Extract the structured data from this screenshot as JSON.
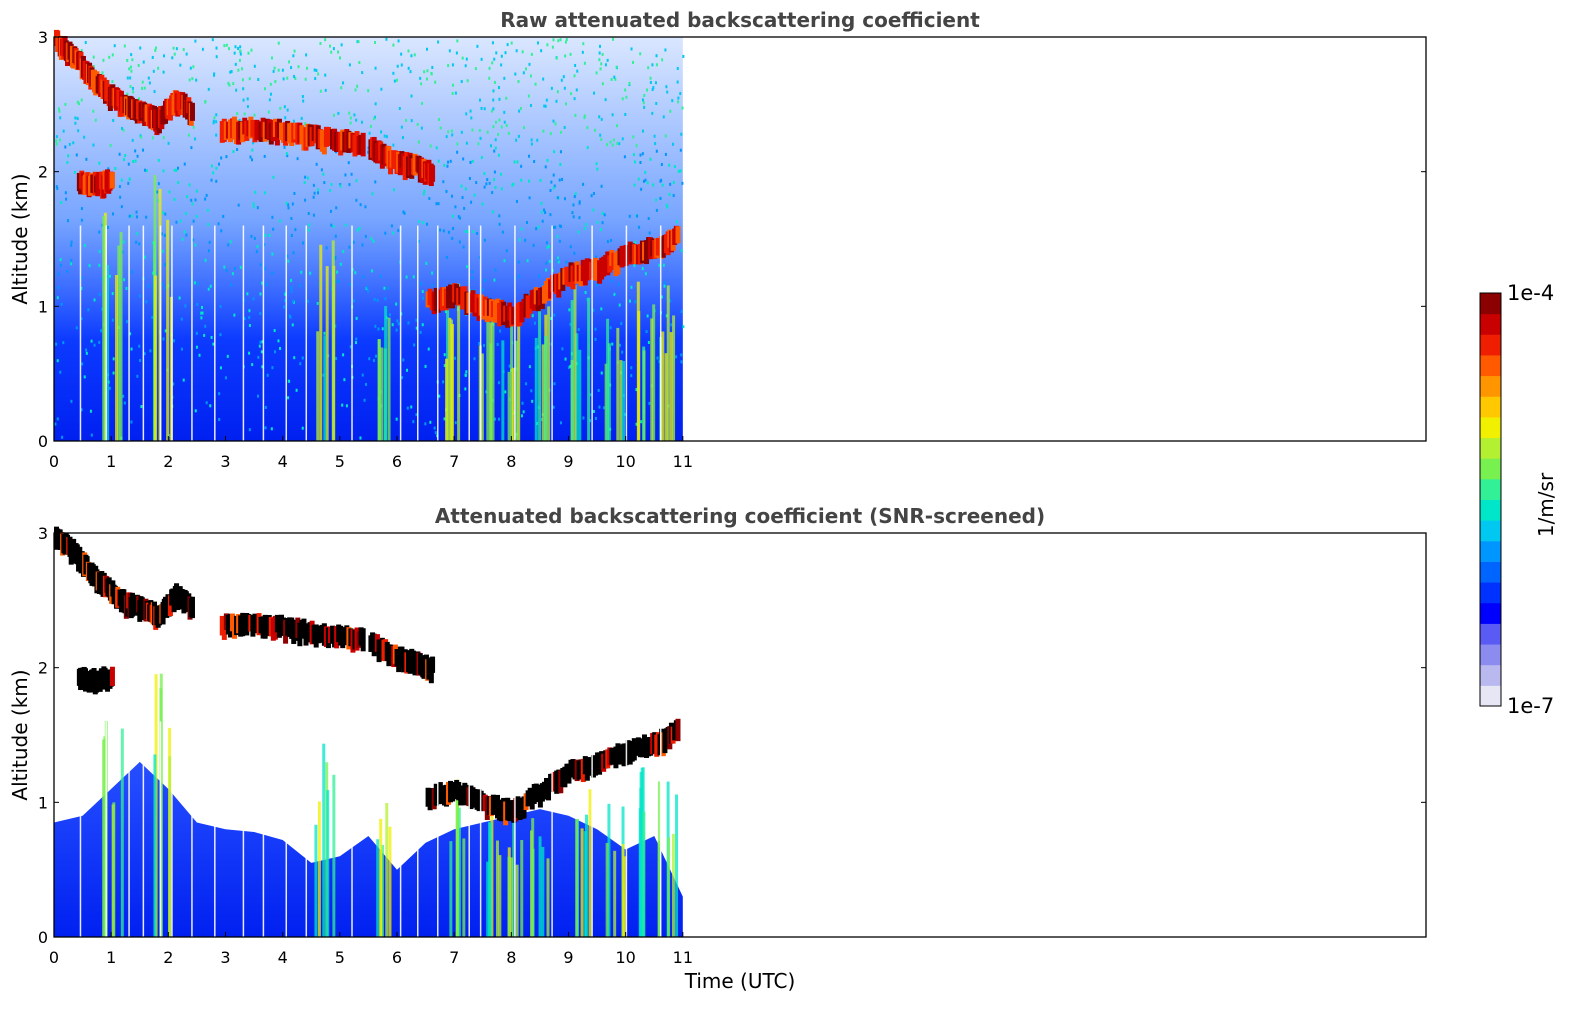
{
  "chart_data": [
    {
      "type": "heatmap",
      "title": "Raw attenuated backscattering coefficient",
      "xlabel": "",
      "ylabel": "Altitude (km)",
      "xlim": [
        0,
        24
      ],
      "ylim": [
        0,
        3
      ],
      "x_ticks": [
        "0",
        "1",
        "2",
        "3",
        "4",
        "5",
        "6",
        "7",
        "8",
        "9",
        "10",
        "11"
      ],
      "y_ticks": [
        "0",
        "1",
        "2",
        "3"
      ],
      "data_extent_x": [
        0,
        11
      ],
      "grid": false,
      "cloud_layers": [
        {
          "x": [
            0.0,
            0.3,
            0.6,
            0.9,
            1.2,
            1.5,
            1.8,
            2.1,
            2.4
          ],
          "y": [
            2.98,
            2.88,
            2.72,
            2.6,
            2.5,
            2.45,
            2.4,
            2.55,
            2.45
          ]
        },
        {
          "x": [
            2.9,
            3.4,
            3.9,
            4.4,
            4.9,
            5.4
          ],
          "y": [
            2.33,
            2.33,
            2.32,
            2.28,
            2.25,
            2.22
          ]
        },
        {
          "x": [
            5.5,
            5.9,
            6.3,
            6.6
          ],
          "y": [
            2.2,
            2.1,
            2.05,
            2.0
          ]
        },
        {
          "x": [
            0.4,
            0.7,
            1.0
          ],
          "y": [
            1.93,
            1.92,
            1.95
          ]
        },
        {
          "x": [
            6.5,
            7.0,
            7.5,
            8.0,
            8.5,
            9.0,
            9.5,
            10.0,
            10.5,
            10.9
          ],
          "y": [
            1.05,
            1.1,
            1.0,
            0.95,
            1.1,
            1.25,
            1.3,
            1.4,
            1.45,
            1.55
          ]
        }
      ]
    },
    {
      "type": "heatmap",
      "title": "Attenuated backscattering coefficient (SNR-screened)",
      "xlabel": "Time (UTC)",
      "ylabel": "Altitude (km)",
      "xlim": [
        0,
        24
      ],
      "ylim": [
        0,
        3
      ],
      "x_ticks": [
        "0",
        "1",
        "2",
        "3",
        "4",
        "5",
        "6",
        "7",
        "8",
        "9",
        "10",
        "11"
      ],
      "y_ticks": [
        "0",
        "1",
        "2",
        "3"
      ],
      "data_extent_x": [
        0,
        11
      ],
      "grid": false
    }
  ],
  "colorbar": {
    "label": "1/m/sr",
    "max_label": "1e-4",
    "min_label": "1e-7",
    "colors": [
      "#e6e6f5",
      "#b9b9f0",
      "#8c8cf0",
      "#5a5af5",
      "#0000ff",
      "#0032ff",
      "#0064ff",
      "#0096ff",
      "#00c8f0",
      "#00e6c8",
      "#32f096",
      "#78f050",
      "#b4f032",
      "#f0f000",
      "#ffc800",
      "#ff9600",
      "#ff5a00",
      "#f01e00",
      "#c80000",
      "#8b0000"
    ]
  }
}
